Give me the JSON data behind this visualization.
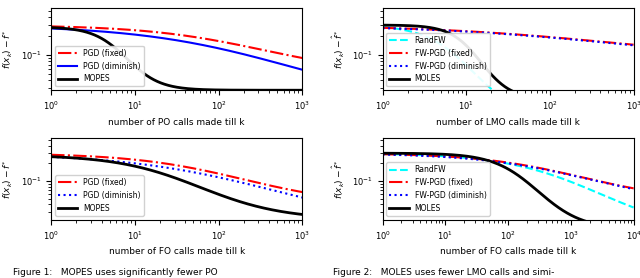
{
  "fig_width": 6.4,
  "fig_height": 2.78,
  "dpi": 100,
  "left_top": {
    "xlabel": "number of PO calls made till k",
    "ylabel": "$f(x_k) - \\hat{f}^*$",
    "xlim": [
      1,
      1000
    ],
    "ylim": [
      0.028,
      0.55
    ],
    "legend_loc": "lower left"
  },
  "right_top": {
    "xlabel": "number of LMO calls made till k",
    "ylabel": "$f(x_k) - \\hat{f}^*$",
    "xlim": [
      1,
      1000
    ],
    "ylim": [
      0.028,
      0.55
    ],
    "legend_loc": "lower left"
  },
  "left_bot": {
    "xlabel": "number of FO calls made till k",
    "ylabel": "$f(x_k) - \\hat{f}^*$",
    "xlim": [
      1,
      1000
    ],
    "ylim": [
      0.022,
      0.55
    ],
    "legend_loc": "lower left"
  },
  "right_bot": {
    "xlabel": "number of FO calls made till k",
    "ylabel": "$f(x_k) - \\hat{f}^*$",
    "xlim": [
      1,
      10000
    ],
    "ylim": [
      0.022,
      0.55
    ],
    "legend_loc": "lower left"
  },
  "caption_left": "Figure 1:   MOPES uses significantly fewer PO",
  "caption_right": "Figure 2:   MOLES uses fewer LMO calls and simi-"
}
